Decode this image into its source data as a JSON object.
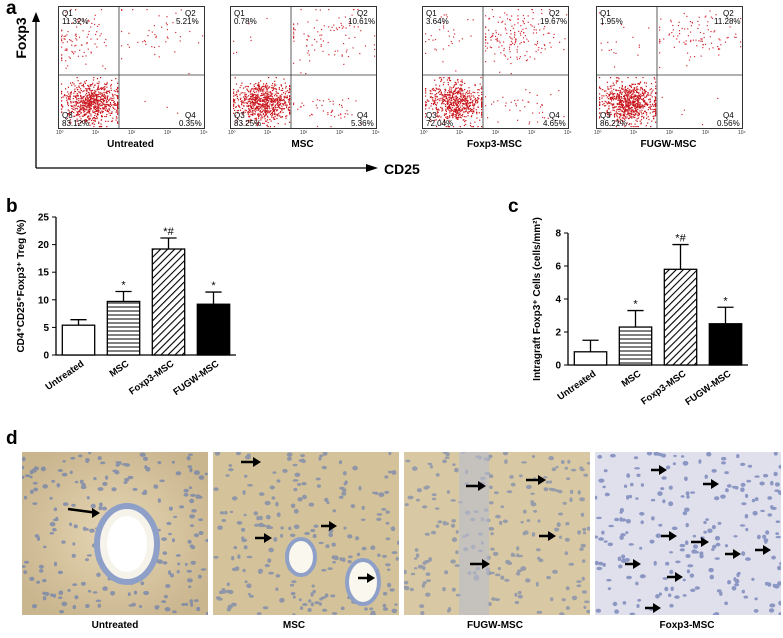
{
  "panel_a": {
    "letter": "a",
    "y_axis": "Foxp3",
    "x_axis": "CD25",
    "tick_labels": [
      "10⁰",
      "10¹",
      "10²",
      "10³",
      "10⁴"
    ],
    "plots": [
      {
        "caption": "Untreated",
        "q1": "Q1",
        "q1_pct": "11.32%",
        "q2": "Q2",
        "q2_pct": "5.21%",
        "q3": "Q3",
        "q3_pct": "83.12%",
        "q4": "Q4",
        "q4_pct": "0.35%"
      },
      {
        "caption": "MSC",
        "q1": "Q1",
        "q1_pct": "0.78%",
        "q2": "Q2",
        "q2_pct": "10.61%",
        "q3": "Q3",
        "q3_pct": "83.25%",
        "q4": "Q4",
        "q4_pct": "5.36%"
      },
      {
        "caption": "Foxp3-MSC",
        "q1": "Q1",
        "q1_pct": "3.64%",
        "q2": "Q2",
        "q2_pct": "19.67%",
        "q3": "Q3",
        "q3_pct": "72.04%",
        "q4": "Q4",
        "q4_pct": "4.65%"
      },
      {
        "caption": "FUGW-MSC",
        "q1": "Q1",
        "q1_pct": "1.95%",
        "q2": "Q2",
        "q2_pct": "11.28%",
        "q3": "Q3",
        "q3_pct": "86.21%",
        "q4": "Q4",
        "q4_pct": "0.56%"
      }
    ]
  },
  "chart_data": [
    {
      "type": "bar",
      "panel": "b",
      "categories": [
        "Untreated",
        "MSC",
        "Foxp3-MSC",
        "FUGW-MSC"
      ],
      "values": [
        5.4,
        9.7,
        19.2,
        9.2
      ],
      "errors": [
        1.0,
        1.8,
        2.0,
        2.2
      ],
      "significance": [
        "",
        "*",
        "*#",
        "*"
      ],
      "ylabel": "CD4⁺CD25⁺Foxp3⁺ Treg (%)",
      "yticks": [
        "0",
        "5",
        "10",
        "15",
        "20",
        "25"
      ],
      "ylim": [
        0,
        25
      ],
      "fills": [
        "white",
        "horizontal-lines",
        "diagonal-hatch",
        "black"
      ]
    },
    {
      "type": "bar",
      "panel": "c",
      "categories": [
        "Untreated",
        "MSC",
        "Foxp3-MSC",
        "FUGW-MSC"
      ],
      "values": [
        0.8,
        2.3,
        5.8,
        2.5
      ],
      "errors": [
        0.7,
        1.0,
        1.5,
        1.0
      ],
      "significance": [
        "",
        "*",
        "*#",
        "*"
      ],
      "ylabel": "Intragraft Foxp3⁺ Cells (cells/mm²)",
      "yticks": [
        "0",
        "2",
        "4",
        "6",
        "8"
      ],
      "ylim": [
        0,
        8
      ],
      "fills": [
        "white",
        "horizontal-lines",
        "diagonal-hatch",
        "black"
      ]
    }
  ],
  "panel_b": {
    "letter": "b"
  },
  "panel_c": {
    "letter": "c"
  },
  "panel_d": {
    "letter": "d",
    "captions": [
      "Untreated",
      "MSC",
      "FUGW-MSC",
      "Foxp3-MSC"
    ]
  }
}
